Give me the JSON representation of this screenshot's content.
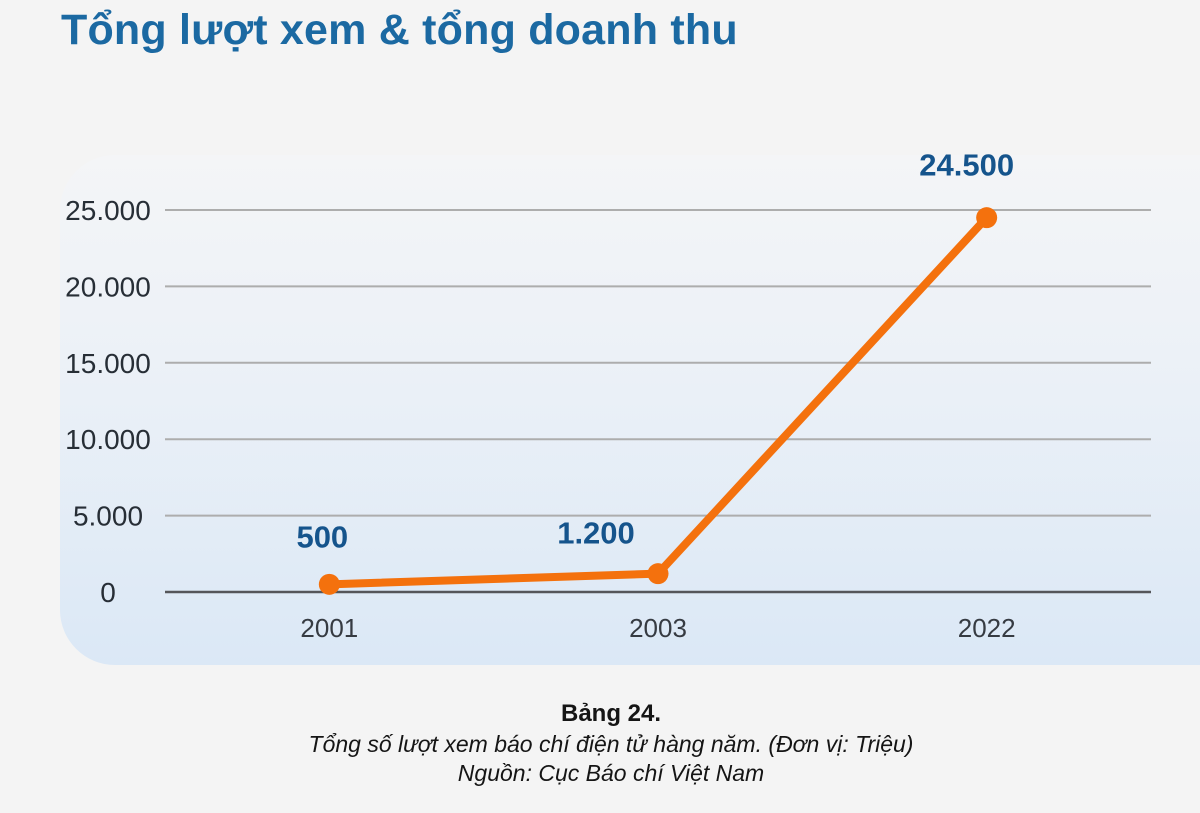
{
  "header": {
    "title": "Tổng lượt xem & tổng doanh thu"
  },
  "caption": {
    "label": "Bảng 24.",
    "description": "Tổng số lượt xem báo chí điện tử hàng năm. (Đơn vị: Triệu)",
    "source": "Nguồn: Cục Báo chí Việt Nam"
  },
  "colors": {
    "title_blue": "#1B69A2",
    "data_label_navy": "#15548C",
    "line_orange": "#F4710D",
    "grid_line": "#ADADAD",
    "zero_line": "#55565A",
    "y_tick_text": "#272E36",
    "x_tick_text": "#363B42",
    "page_bg": "#F4F4F4",
    "panel_gradient_top": "#F4F5F7",
    "panel_gradient_bottom": "#DBE8F6"
  },
  "chart_data": {
    "type": "line",
    "title": "Tổng lượt xem & tổng doanh thu",
    "categories": [
      "2001",
      "2003",
      "2022"
    ],
    "values": [
      500,
      1200,
      24500
    ],
    "point_labels": [
      "500",
      "1.200",
      "24.500"
    ],
    "y_ticks": {
      "values": [
        0,
        5000,
        10000,
        15000,
        20000,
        25000
      ],
      "labels": [
        "0",
        "5.000",
        "10.000",
        "15.000",
        "20.000",
        "25.000"
      ]
    },
    "ylim": [
      0,
      25000
    ],
    "grid": "horizontal",
    "legend": "none",
    "marker": "circle",
    "unit": "Triệu"
  }
}
